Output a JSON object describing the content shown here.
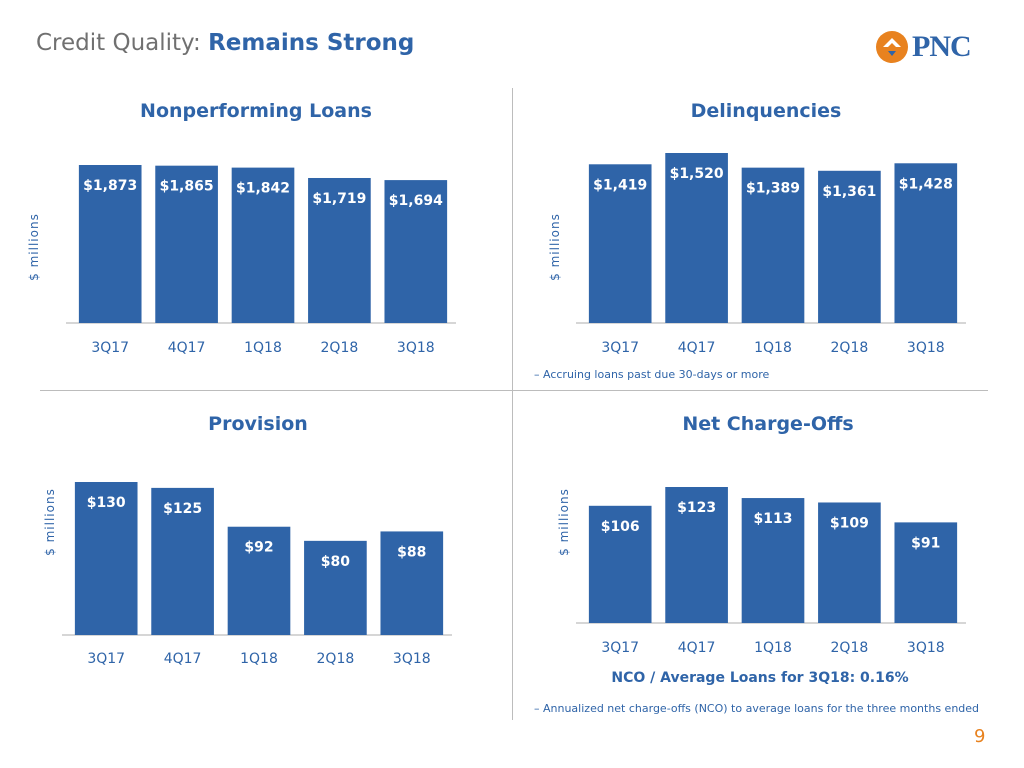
{
  "header": {
    "title_light": "Credit Quality:",
    "title_strong": "Remains Strong",
    "logo_text": "PNC"
  },
  "colors": {
    "bar": "#2f64a8",
    "accent_orange": "#e8821f",
    "axis": "#c8c8c8",
    "divider": "#bcbcbc"
  },
  "chart_data": [
    {
      "type": "bar",
      "title": "Nonperforming Loans",
      "ylabel": "$ millions",
      "categories": [
        "3Q17",
        "4Q17",
        "1Q18",
        "2Q18",
        "3Q18"
      ],
      "values": [
        1873,
        1865,
        1842,
        1719,
        1694
      ],
      "data_labels": [
        "$1,873",
        "$1,865",
        "$1,842",
        "$1,719",
        "$1,694"
      ],
      "ylim": [
        0,
        1873
      ],
      "grid": false,
      "footnote": ""
    },
    {
      "type": "bar",
      "title": "Delinquencies",
      "ylabel": "$ millions",
      "categories": [
        "3Q17",
        "4Q17",
        "1Q18",
        "2Q18",
        "3Q18"
      ],
      "values": [
        1419,
        1520,
        1389,
        1361,
        1428
      ],
      "data_labels": [
        "$1,419",
        "$1,520",
        "$1,389",
        "$1,361",
        "$1,428"
      ],
      "ylim": [
        0,
        1520
      ],
      "grid": false,
      "footnote": "– Accruing loans past due 30-days or more"
    },
    {
      "type": "bar",
      "title": "Provision",
      "ylabel": "$ millions",
      "categories": [
        "3Q17",
        "4Q17",
        "1Q18",
        "2Q18",
        "3Q18"
      ],
      "values": [
        130,
        125,
        92,
        80,
        88
      ],
      "data_labels": [
        "$130",
        "$125",
        "$92",
        "$80",
        "$88"
      ],
      "ylim": [
        0,
        130
      ],
      "grid": false,
      "footnote": ""
    },
    {
      "type": "bar",
      "title": "Net Charge-Offs",
      "ylabel": "$ millions",
      "categories": [
        "3Q17",
        "4Q17",
        "1Q18",
        "2Q18",
        "3Q18"
      ],
      "values": [
        106,
        123,
        113,
        109,
        91
      ],
      "data_labels": [
        "$106",
        "$123",
        "$113",
        "$109",
        "$91"
      ],
      "ylim": [
        0,
        123
      ],
      "grid": false,
      "footnote": "– Annualized net charge-offs (NCO) to average loans for the three months ended"
    }
  ],
  "nco_ratio": "NCO / Average Loans for 3Q18: 0.16%",
  "page_number": "9"
}
